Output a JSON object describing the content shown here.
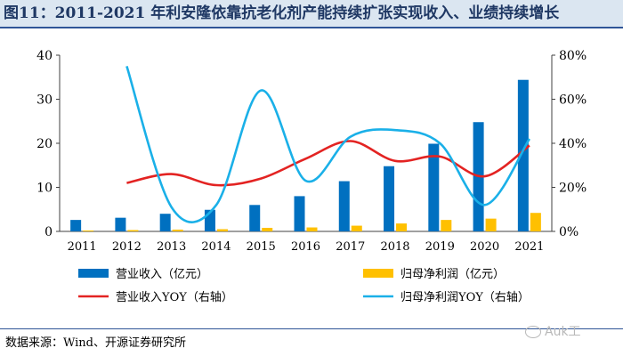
{
  "header": {
    "title": "图11：2011-2021 年利安隆依靠抗老化剂产能持续扩张实现收入、业绩持续增长"
  },
  "chart_data": {
    "type": "bar",
    "title": "图11：2011-2021 年利安隆依靠抗老化剂产能持续扩张实现收入、业绩持续增长",
    "categories": [
      "2011",
      "2012",
      "2013",
      "2014",
      "2015",
      "2016",
      "2017",
      "2018",
      "2019",
      "2020",
      "2021"
    ],
    "left_axis": {
      "ylim": [
        0,
        40
      ],
      "ticks": [
        "0",
        "10",
        "20",
        "30",
        "40"
      ],
      "tick_values": [
        0,
        10,
        20,
        30,
        40
      ]
    },
    "right_axis": {
      "ylim": [
        0,
        80
      ],
      "ticks": [
        "0%",
        "20%",
        "40%",
        "60%",
        "80%"
      ],
      "tick_values": [
        0,
        20,
        40,
        60,
        80
      ]
    },
    "bar_series": [
      {
        "name": "营业收入（亿元）",
        "color": "#0070c0",
        "values": [
          2.6,
          3.1,
          4.0,
          4.9,
          6.0,
          8.0,
          11.4,
          14.8,
          19.9,
          24.8,
          34.4
        ]
      },
      {
        "name": "归母净利润（亿元）",
        "color": "#ffc000",
        "values": [
          0.2,
          0.3,
          0.4,
          0.5,
          0.8,
          0.9,
          1.3,
          1.8,
          2.6,
          2.9,
          4.2
        ]
      }
    ],
    "line_series": [
      {
        "name": "营业收入YOY（右轴）",
        "color": "#e32322",
        "axis": "right",
        "x_start_index": 1,
        "values": [
          22,
          26,
          21,
          24,
          33,
          41,
          32,
          34,
          25,
          39
        ]
      },
      {
        "name": "归母净利润YOY（右轴）",
        "color": "#1ab0e8",
        "axis": "right",
        "x_start_index": 1,
        "values": [
          75,
          11,
          12,
          64,
          23,
          43,
          46,
          40,
          12,
          42
        ]
      }
    ],
    "legend": [
      {
        "label": "营业收入（亿元）",
        "kind": "bar",
        "color": "#0070c0"
      },
      {
        "label": "归母净利润（亿元）",
        "kind": "bar",
        "color": "#ffc000"
      },
      {
        "label": "营业收入YOY（右轴）",
        "kind": "line",
        "color": "#e32322"
      },
      {
        "label": "归母净利润YOY（右轴）",
        "kind": "line",
        "color": "#1ab0e8"
      }
    ]
  },
  "source": {
    "text": "数据来源：Wind、开源证券研究所"
  },
  "watermark": {
    "text": "Auk工"
  }
}
